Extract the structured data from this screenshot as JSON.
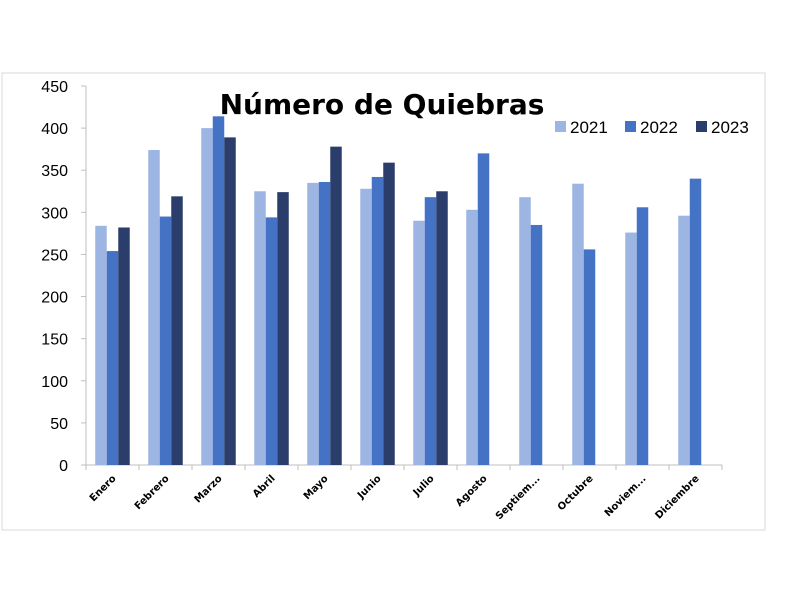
{
  "chart_data": {
    "type": "bar",
    "title": "Número de Quiebras",
    "xlabel": "",
    "ylabel": "",
    "ylim": [
      0,
      450
    ],
    "yticks": [
      0,
      50,
      100,
      150,
      200,
      250,
      300,
      350,
      400,
      450
    ],
    "grid": false,
    "legend_position": "top-right",
    "categories": [
      "Enero",
      "Febrero",
      "Marzo",
      "Abril",
      "Mayo",
      "Junio",
      "Julio",
      "Agosto",
      "Septiem...",
      "Octubre",
      "Noviem...",
      "Diciembre"
    ],
    "series": [
      {
        "name": "2021",
        "color": "#9db5e3",
        "values": [
          284,
          374,
          400,
          325,
          335,
          328,
          290,
          303,
          318,
          334,
          276,
          296
        ]
      },
      {
        "name": "2022",
        "color": "#4472c4",
        "values": [
          254,
          295,
          414,
          294,
          336,
          342,
          318,
          370,
          285,
          256,
          306,
          340
        ]
      },
      {
        "name": "2023",
        "color": "#2b3d6b",
        "values": [
          282,
          319,
          389,
          324,
          378,
          359,
          325,
          null,
          null,
          null,
          null,
          null
        ]
      }
    ]
  }
}
